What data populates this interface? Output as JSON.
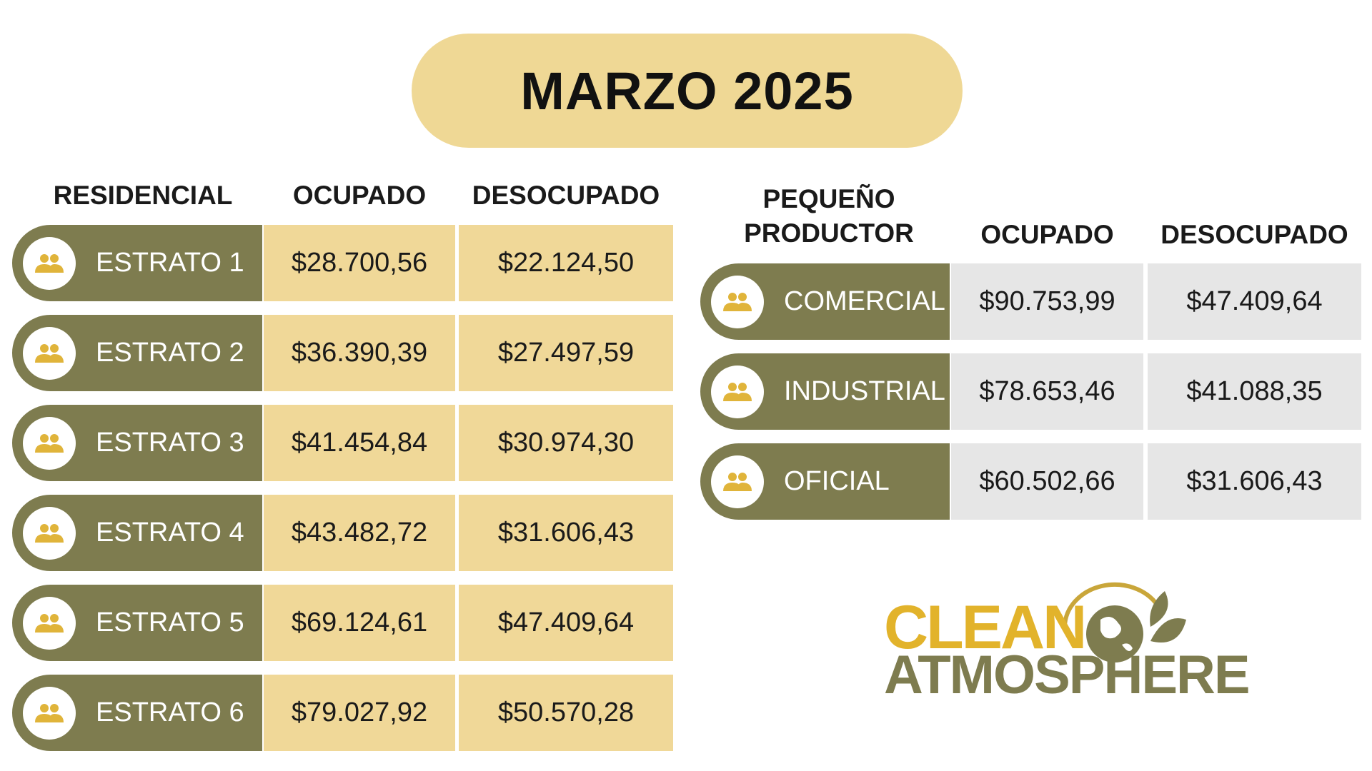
{
  "title": "MARZO 2025",
  "residencial": {
    "headers": [
      "RESIDENCIAL",
      "OCUPADO",
      "DESOCUPADO"
    ],
    "rows": [
      [
        "ESTRATO 1",
        "$28.700,56",
        "$22.124,50"
      ],
      [
        "ESTRATO 2",
        "$36.390,39",
        "$27.497,59"
      ],
      [
        "ESTRATO 3",
        "$41.454,84",
        "$30.974,30"
      ],
      [
        "ESTRATO 4",
        "$43.482,72",
        "$31.606,43"
      ],
      [
        "ESTRATO 5",
        "$69.124,61",
        "$47.409,64"
      ],
      [
        "ESTRATO 6",
        "$79.027,92",
        "$50.570,28"
      ]
    ]
  },
  "pequeno_productor": {
    "headers": [
      "PEQUEÑO PRODUCTOR",
      "OCUPADO",
      "DESOCUPADO"
    ],
    "rows": [
      [
        "COMERCIAL",
        "$90.753,99",
        "$47.409,64"
      ],
      [
        "INDUSTRIAL",
        "$78.653,46",
        "$41.088,35"
      ],
      [
        "OFICIAL",
        "$60.502,66",
        "$31.606,43"
      ]
    ]
  },
  "logo": {
    "line1": "CLEAN",
    "line2": "ATMOSPHERE"
  }
}
